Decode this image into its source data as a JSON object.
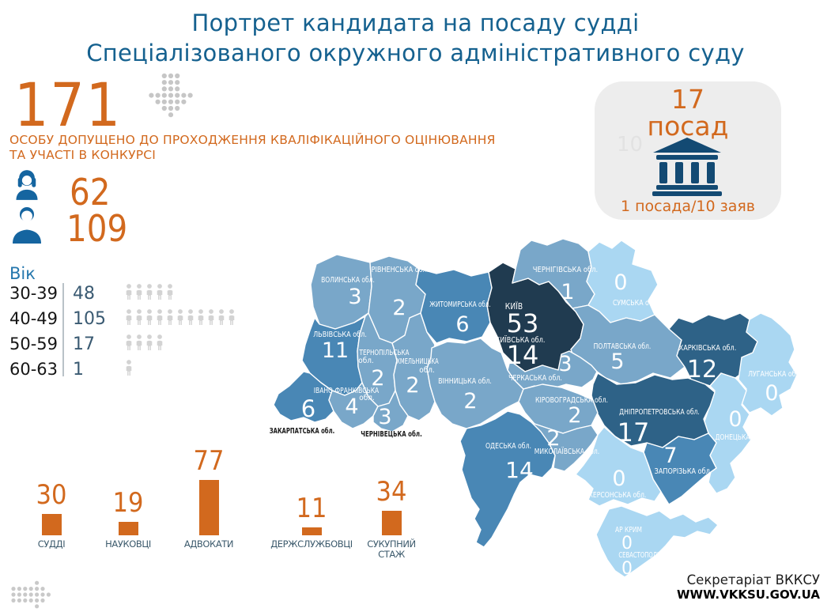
{
  "title": {
    "line1": "Портрет кандидата на посаду судді",
    "line2": "Спеціалізованого окружного адміністративного суду"
  },
  "admitted": {
    "count": "171",
    "caption_line1": "ОСОБУ ДОПУЩЕНО ДО ПРОХОДЖЕННЯ КВАЛІФІКАЦІЙНОГО ОЦІНЮВАННЯ",
    "caption_line2": "ТА УЧАСТІ В КОНКУРСІ"
  },
  "gender": {
    "female": "62",
    "male": "109"
  },
  "age": {
    "header": "Вік",
    "rows": [
      {
        "range": "30-39",
        "count": "48",
        "icons": 5
      },
      {
        "range": "40-49",
        "count": "105",
        "icons": 11
      },
      {
        "range": "50-59",
        "count": "17",
        "icons": 4
      },
      {
        "range": "60-63",
        "count": "1",
        "icons": 1
      }
    ]
  },
  "positions_box": {
    "count": "17",
    "unit": "посад",
    "ratio": "1 посада/10 заяв",
    "watermark": "10"
  },
  "professions": {
    "items": [
      {
        "label": "СУДДІ",
        "value": 30
      },
      {
        "label": "НАУКОВЦІ",
        "value": 19
      },
      {
        "label": "АДВОКАТИ",
        "value": 77
      },
      {
        "label": "ДЕРЖСЛУЖБОВЦІ",
        "value": 11
      },
      {
        "label": "СУКУПНИЙ\nСТАЖ",
        "value": 34
      }
    ]
  },
  "map": {
    "regions": [
      {
        "id": "volyn",
        "name": "ВОЛИНСЬКА обл.",
        "value": 3,
        "fill": "#79a7c9",
        "label_color": "#ffffff"
      },
      {
        "id": "rivne",
        "name": "РІВНЕНСЬКА обл.",
        "value": 2,
        "fill": "#79a7c9",
        "label_color": "#ffffff"
      },
      {
        "id": "lviv",
        "name": "ЛЬВІВСЬКА обл.",
        "value": 11,
        "fill": "#4987b5",
        "label_color": "#ffffff"
      },
      {
        "id": "ternopil",
        "name": "ТЕРНОПІЛЬСЬКА обл.",
        "lines": [
          "ТЕРНОПІЛЬСЬКА",
          "обл."
        ],
        "value": 2,
        "fill": "#79a7c9",
        "label_color": "#ffffff"
      },
      {
        "id": "khmelnytskyi",
        "name": "ХМЕЛЬНИЦЬКА обл.",
        "lines": [
          "ХМЕЛЬНИЦЬКА",
          "обл."
        ],
        "value": 2,
        "fill": "#79a7c9",
        "label_color": "#ffffff"
      },
      {
        "id": "zhytomyr",
        "name": "ЖИТОМИРСЬКА обл.",
        "value": 6,
        "fill": "#4987b5",
        "label_color": "#ffffff"
      },
      {
        "id": "kyiv_city",
        "name": "КИЇВ",
        "value": 53,
        "fill": "#203b50",
        "label_color": "#ffffff"
      },
      {
        "id": "kyiv_oblast",
        "name": "КИЇВСЬКА обл.",
        "value": 14,
        "fill": "#203b50",
        "label_color": "#ffffff"
      },
      {
        "id": "chernihiv",
        "name": "ЧЕРНІГІВСЬКА обл.",
        "value": 1,
        "fill": "#79a7c9",
        "label_color": "#ffffff"
      },
      {
        "id": "sumy",
        "name": "СУМСЬКА обл.",
        "value": 0,
        "fill": "#aad7f2",
        "label_color": "#ffffff"
      },
      {
        "id": "poltava",
        "name": "ПОЛТАВСЬКА обл.",
        "value": 5,
        "fill": "#79a7c9",
        "label_color": "#ffffff"
      },
      {
        "id": "kharkiv",
        "name": "ХАРКІВСЬКА обл.",
        "value": 12,
        "fill": "#2e6287",
        "label_color": "#ffffff"
      },
      {
        "id": "luhansk",
        "name": "ЛУГАНСЬКА обл.",
        "value": 0,
        "fill": "#aad7f2",
        "label_color": "#ffffff"
      },
      {
        "id": "donetsk",
        "name": "ДОНЕЦЬКА обл.",
        "value": 0,
        "fill": "#aad7f2",
        "label_color": "#ffffff"
      },
      {
        "id": "dnipro",
        "name": "ДНІПРОПЕТРОВСЬКА обл.",
        "value": 17,
        "fill": "#2e6287",
        "label_color": "#ffffff"
      },
      {
        "id": "zaporizhzhia",
        "name": "ЗАПОРІЗЬКА обл.",
        "value": 7,
        "fill": "#4987b5",
        "label_color": "#ffffff"
      },
      {
        "id": "kherson",
        "name": "ХЕРСОНСЬКА обл.",
        "value": 0,
        "fill": "#aad7f2",
        "label_color": "#ffffff"
      },
      {
        "id": "crimea",
        "name": "АР КРИМ",
        "value": 0,
        "fill": "#aad7f2",
        "label_color": "#ffffff"
      },
      {
        "id": "sevastopol",
        "name": "СЕВАСТОПОЛЬ",
        "value": 0,
        "fill": "#aad7f2",
        "label_color": "#ffffff"
      },
      {
        "id": "zakarpattia",
        "name": "ЗАКАРПАТСЬКА обл.",
        "value": 6,
        "fill": "#4987b5",
        "label_color": "#1a1a1a"
      },
      {
        "id": "ivano_frankivsk",
        "name": "ІВАНО-ФРАНКІВСЬКА обл.",
        "lines": [
          "ІВАНО-ФРАНКІВСЬКА",
          "обл."
        ],
        "value": 4,
        "fill": "#79a7c9",
        "label_color": "#ffffff"
      },
      {
        "id": "chernivtsi",
        "name": "ЧЕРНІВЕЦЬКА обл.",
        "value": 3,
        "fill": "#79a7c9",
        "label_color": "#1a1a1a"
      },
      {
        "id": "vinnytsia",
        "name": "ВІННИЦЬКА обл.",
        "value": 2,
        "fill": "#79a7c9",
        "label_color": "#ffffff"
      },
      {
        "id": "cherkasy",
        "name": "ЧЕРКАСЬКА обл.",
        "value": 3,
        "fill": "#79a7c9",
        "label_color": "#ffffff"
      },
      {
        "id": "kirovohrad",
        "name": "КІРОВОГРАДСЬКА обл.",
        "value": 2,
        "fill": "#79a7c9",
        "label_color": "#ffffff"
      },
      {
        "id": "mykolaiv",
        "name": "МИКОЛАЇВСЬКА обл.",
        "value": 2,
        "fill": "#79a7c9",
        "label_color": "#ffffff"
      },
      {
        "id": "odesa",
        "name": "ОДЕСЬКА обл.",
        "value": 14,
        "fill": "#4987b5",
        "label_color": "#ffffff"
      }
    ]
  },
  "footer": {
    "org": "Секретаріат ВККСУ",
    "site": "WWW.VKKSU.GOV.UA"
  },
  "colors": {
    "accent_orange": "#d2691e",
    "title_blue": "#15618f",
    "person_icon_blue": "#1565a0",
    "bank_icon_navy": "#134a73",
    "map_darkest": "#203b50",
    "map_dark": "#2e6287",
    "map_mid": "#4987b5",
    "map_low": "#79a7c9",
    "map_zero": "#aad7f2",
    "pictogram_gray": "#d3d3d3"
  },
  "chart_data": [
    {
      "type": "bar",
      "title": "",
      "categories": [
        "СУДДІ",
        "НАУКОВЦІ",
        "АДВОКАТИ",
        "ДЕРЖСЛУЖБОВЦІ",
        "СУКУПНИЙ СТАЖ"
      ],
      "values": [
        30,
        19,
        77,
        11,
        34
      ],
      "xlabel": "",
      "ylabel": "",
      "ylim": [
        0,
        85
      ],
      "grid": false,
      "legend": false
    },
    {
      "type": "bar",
      "title": "Вік",
      "categories": [
        "30-39",
        "40-49",
        "50-59",
        "60-63"
      ],
      "values": [
        48,
        105,
        17,
        1
      ],
      "xlabel": "",
      "ylabel": "",
      "grid": false,
      "legend": false
    },
    {
      "type": "bar",
      "title": "",
      "categories": [
        "female-icon",
        "male-icon"
      ],
      "values": [
        62,
        109
      ],
      "xlabel": "",
      "ylabel": "",
      "grid": false,
      "legend": false
    },
    {
      "type": "heatmap",
      "title": "",
      "regions": [
        [
          "ВОЛИНСЬКА обл.",
          3
        ],
        [
          "РІВНЕНСЬКА обл.",
          2
        ],
        [
          "ЛЬВІВСЬКА обл.",
          11
        ],
        [
          "ТЕРНОПІЛЬСЬКА обл.",
          2
        ],
        [
          "ХМЕЛЬНИЦЬКА обл.",
          2
        ],
        [
          "ЖИТОМИРСЬКА обл.",
          6
        ],
        [
          "КИЇВ",
          53
        ],
        [
          "КИЇВСЬКА обл.",
          14
        ],
        [
          "ЧЕРНІГІВСЬКА обл.",
          1
        ],
        [
          "СУМСЬКА обл.",
          0
        ],
        [
          "ПОЛТАВСЬКА обл.",
          5
        ],
        [
          "ХАРКІВСЬКА обл.",
          12
        ],
        [
          "ЛУГАНСЬКА обл.",
          0
        ],
        [
          "ДОНЕЦЬКА обл.",
          0
        ],
        [
          "ДНІПРОПЕТРОВСЬКА обл.",
          17
        ],
        [
          "ЗАПОРІЗЬКА обл.",
          7
        ],
        [
          "ХЕРСОНСЬКА обл.",
          0
        ],
        [
          "АР КРИМ",
          0
        ],
        [
          "СЕВАСТОПОЛЬ",
          0
        ],
        [
          "ЗАКАРПАТСЬКА обл.",
          6
        ],
        [
          "ІВАНО-ФРАНКІВСЬКА обл.",
          4
        ],
        [
          "ЧЕРНІВЕЦЬКА обл.",
          3
        ],
        [
          "ВІННИЦЬКА обл.",
          2
        ],
        [
          "ЧЕРКАСЬКА обл.",
          3
        ],
        [
          "КІРОВОГРАДСЬКА обл.",
          2
        ],
        [
          "МИКОЛАЇВСЬКА обл.",
          2
        ],
        [
          "ОДЕСЬКА обл.",
          14
        ]
      ]
    }
  ]
}
